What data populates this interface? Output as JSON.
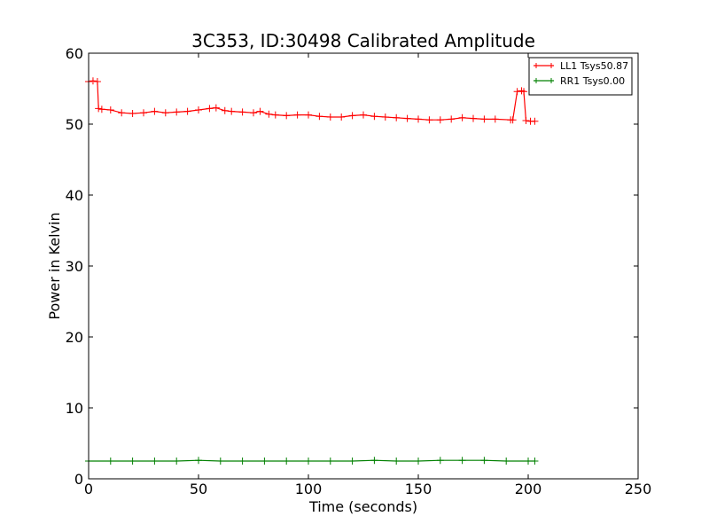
{
  "chart_data": {
    "type": "line",
    "title": "3C353, ID:30498 Calibrated Amplitude",
    "xlabel": "Time (seconds)",
    "ylabel": "Power in Kelvin",
    "xlim": [
      0,
      250
    ],
    "ylim": [
      0,
      60
    ],
    "xticks": [
      0,
      50,
      100,
      150,
      200,
      250
    ],
    "yticks": [
      0,
      10,
      20,
      30,
      40,
      50,
      60
    ],
    "grid": false,
    "legend_position": "top-right",
    "marker": "+",
    "series": [
      {
        "name": "LL1 Tsys50.87",
        "color": "#ff0000",
        "x": [
          0,
          2,
          4,
          4.5,
          6,
          10,
          15,
          20,
          25,
          30,
          35,
          40,
          45,
          50,
          55,
          58,
          62,
          65,
          70,
          75,
          78,
          82,
          85,
          90,
          95,
          100,
          105,
          110,
          115,
          120,
          125,
          130,
          135,
          140,
          145,
          150,
          155,
          160,
          165,
          170,
          175,
          180,
          185,
          192,
          193,
          195,
          197,
          198,
          199,
          201,
          203
        ],
        "y": [
          56.0,
          56.1,
          56.0,
          52.2,
          52.1,
          52.0,
          51.6,
          51.5,
          51.6,
          51.8,
          51.6,
          51.7,
          51.8,
          52.0,
          52.2,
          52.3,
          51.9,
          51.8,
          51.7,
          51.6,
          51.8,
          51.4,
          51.3,
          51.2,
          51.3,
          51.3,
          51.1,
          51.0,
          51.0,
          51.2,
          51.3,
          51.1,
          51.0,
          50.9,
          50.8,
          50.7,
          50.6,
          50.6,
          50.7,
          50.9,
          50.8,
          50.7,
          50.7,
          50.6,
          50.6,
          54.6,
          54.7,
          54.6,
          50.5,
          50.4,
          50.4
        ]
      },
      {
        "name": "RR1 Tsys0.00",
        "color": "#008000",
        "x": [
          0,
          10,
          20,
          30,
          40,
          50,
          60,
          70,
          80,
          90,
          100,
          110,
          120,
          130,
          140,
          150,
          160,
          170,
          180,
          190,
          200,
          203
        ],
        "y": [
          2.5,
          2.5,
          2.5,
          2.5,
          2.5,
          2.6,
          2.5,
          2.5,
          2.5,
          2.5,
          2.5,
          2.5,
          2.5,
          2.6,
          2.5,
          2.5,
          2.6,
          2.6,
          2.6,
          2.5,
          2.5,
          2.5
        ]
      }
    ]
  }
}
